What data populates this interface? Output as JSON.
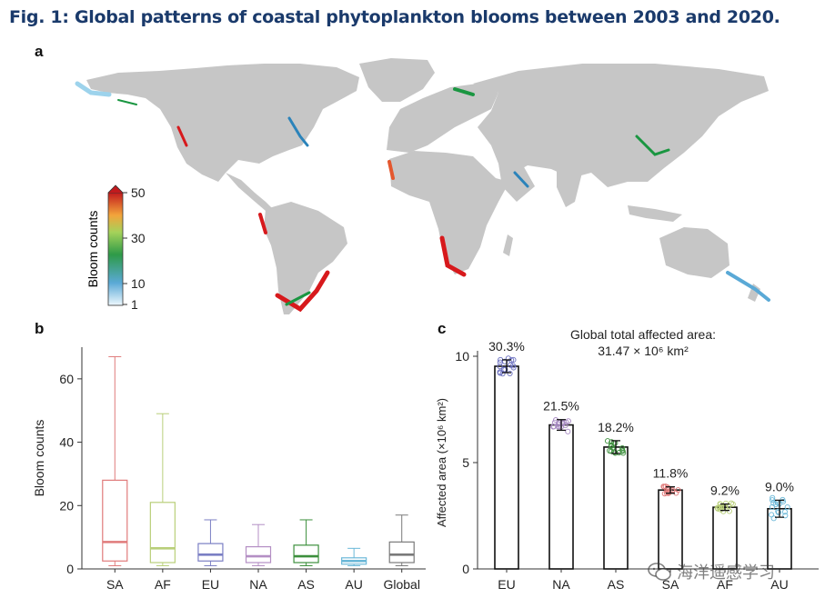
{
  "figure": {
    "title": "Fig. 1: Global patterns of coastal phytoplankton blooms between 2003 and 2020.",
    "panels": [
      "a",
      "b",
      "c"
    ],
    "watermark": "海洋遥感学习",
    "watermark_icon": "wechat-icon"
  },
  "map": {
    "colorbar_label": "Bloom counts",
    "colorbar_ticks": [
      "50",
      "30",
      "10",
      "1"
    ],
    "colors": {
      "land": "#c8c8c8",
      "high": "#d7191c",
      "mid": "#1a9641",
      "low": "#2b83ba",
      "min": "#d4eef8"
    }
  },
  "chart_data": [
    {
      "type": "box",
      "ylabel": "Bloom counts",
      "ylim": [
        0,
        70
      ],
      "yticks": [
        0,
        20,
        40,
        60
      ],
      "categories": [
        "SA",
        "AF",
        "EU",
        "NA",
        "AS",
        "AU",
        "Global"
      ],
      "colors": [
        "#e07b7b",
        "#b9cf7a",
        "#7b7fc4",
        "#b48fc4",
        "#3c8f3c",
        "#6bb8d8",
        "#7a7a7a"
      ],
      "boxes": [
        {
          "min": 1,
          "q1": 2.5,
          "median": 8.5,
          "q3": 28,
          "max": 67
        },
        {
          "min": 1,
          "q1": 2,
          "median": 6.5,
          "q3": 21,
          "max": 49
        },
        {
          "min": 1,
          "q1": 2.5,
          "median": 4.5,
          "q3": 8,
          "max": 15.5
        },
        {
          "min": 1,
          "q1": 2,
          "median": 4,
          "q3": 7,
          "max": 14
        },
        {
          "min": 1,
          "q1": 2,
          "median": 4,
          "q3": 7.5,
          "max": 15.5
        },
        {
          "min": 1,
          "q1": 1.5,
          "median": 2.5,
          "q3": 3.5,
          "max": 6.5
        },
        {
          "min": 1,
          "q1": 2,
          "median": 4.5,
          "q3": 8.5,
          "max": 17
        }
      ]
    },
    {
      "type": "bar",
      "title": "Global total affected area:",
      "subtitle": "31.47 × 10⁶ km²",
      "ylabel": "Affected area (×10⁶ km²)",
      "ylim": [
        0,
        10
      ],
      "yticks": [
        0,
        5,
        10
      ],
      "categories": [
        "EU",
        "NA",
        "AS",
        "SA",
        "AF",
        "AU"
      ],
      "values": [
        9.53,
        6.77,
        5.73,
        3.71,
        2.9,
        2.83
      ],
      "errors": [
        0.3,
        0.25,
        0.3,
        0.15,
        0.15,
        0.4
      ],
      "labels": [
        "30.3%",
        "21.5%",
        "18.2%",
        "11.8%",
        "9.2%",
        "9.0%"
      ],
      "point_colors": [
        "#6a6fc0",
        "#a98bc4",
        "#3c8f3c",
        "#e07b7b",
        "#b9cf7a",
        "#6bb8d8"
      ]
    }
  ]
}
